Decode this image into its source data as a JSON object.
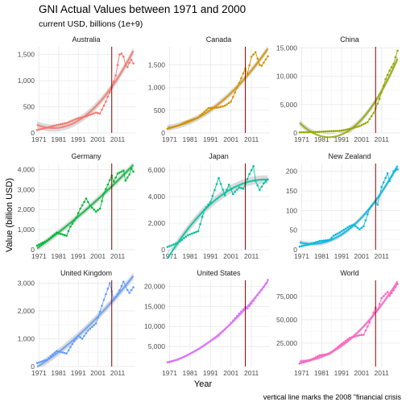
{
  "title": "GNI Actual Values between 1971 and 2000",
  "subtitle": "current USD, billions (1e+9)",
  "xlabel": "Year",
  "ylabel": "Value (billion USD)",
  "caption": "vertical line marks the 2008 \"financial crisis",
  "colors": {
    "Australia": "#F8766D",
    "Canada": "#D39200",
    "China": "#93AA00",
    "Germany": "#00BA38",
    "Japan": "#00C19F",
    "New Zealand": "#00B9E3",
    "United Kingdom": "#619CFF",
    "United States": "#DB72FB",
    "World": "#FF61C3",
    "crisis_line": "#8B0000",
    "panel_grid": "#EBEBEB",
    "smooth_band": "#BDBDBD"
  },
  "chart_data": {
    "type": "line",
    "crisis_year": 2008,
    "x_range": [
      1970,
      2020
    ],
    "x_ticks": [
      1971,
      1981,
      1991,
      2001,
      2011
    ],
    "panels": [
      {
        "name": "Australia",
        "color_key": "Australia",
        "ylim": [
          0,
          1650
        ],
        "y_ticks": [
          0,
          500,
          1000,
          1500
        ],
        "y_tick_labels": [
          "0",
          "500",
          "1,000",
          "1,500"
        ],
        "anchors": [
          [
            1970,
            55
          ],
          [
            1975,
            100
          ],
          [
            1980,
            150
          ],
          [
            1985,
            190
          ],
          [
            1990,
            270
          ],
          [
            1995,
            320
          ],
          [
            2000,
            390
          ],
          [
            2002,
            370
          ],
          [
            2005,
            600
          ],
          [
            2008,
            870
          ],
          [
            2010,
            1100
          ],
          [
            2011,
            1300
          ],
          [
            2012,
            1500
          ],
          [
            2013,
            1520
          ],
          [
            2014,
            1460
          ],
          [
            2015,
            1300
          ],
          [
            2016,
            1260
          ],
          [
            2017,
            1340
          ],
          [
            2018,
            1400
          ],
          [
            2019,
            1330
          ]
        ]
      },
      {
        "name": "Canada",
        "color_key": "Canada",
        "ylim": [
          0,
          1900
        ],
        "y_ticks": [
          0,
          500,
          1000,
          1500
        ],
        "y_tick_labels": [
          "0",
          "500",
          "1,000",
          "1,500"
        ],
        "anchors": [
          [
            1970,
            90
          ],
          [
            1975,
            160
          ],
          [
            1980,
            260
          ],
          [
            1985,
            340
          ],
          [
            1990,
            550
          ],
          [
            1995,
            560
          ],
          [
            1998,
            600
          ],
          [
            2001,
            690
          ],
          [
            2005,
            1100
          ],
          [
            2008,
            1420
          ],
          [
            2009,
            1300
          ],
          [
            2011,
            1680
          ],
          [
            2013,
            1780
          ],
          [
            2015,
            1500
          ],
          [
            2016,
            1480
          ],
          [
            2019,
            1690
          ]
        ]
      },
      {
        "name": "China",
        "color_key": "China",
        "ylim": [
          0,
          15200
        ],
        "y_ticks": [
          0,
          5000,
          10000,
          15000
        ],
        "y_tick_labels": [
          "0",
          "5,000",
          "10,000",
          "15,000"
        ],
        "anchors": [
          [
            1970,
            92
          ],
          [
            1980,
            190
          ],
          [
            1985,
            300
          ],
          [
            1990,
            360
          ],
          [
            1995,
            700
          ],
          [
            2000,
            1200
          ],
          [
            2004,
            1900
          ],
          [
            2007,
            3500
          ],
          [
            2010,
            6000
          ],
          [
            2013,
            9500
          ],
          [
            2015,
            11000
          ],
          [
            2017,
            12200
          ],
          [
            2019,
            14500
          ]
        ]
      },
      {
        "name": "Germany",
        "color_key": "Germany",
        "ylim": [
          0,
          4300
        ],
        "y_ticks": [
          0,
          1000,
          2000,
          3000,
          4000
        ],
        "y_tick_labels": [
          "0",
          "1,000",
          "2,000",
          "3,000",
          "4,000"
        ],
        "anchors": [
          [
            1970,
            210
          ],
          [
            1975,
            450
          ],
          [
            1980,
            850
          ],
          [
            1985,
            700
          ],
          [
            1987,
            1150
          ],
          [
            1990,
            1600
          ],
          [
            1992,
            2050
          ],
          [
            1995,
            2550
          ],
          [
            1997,
            2200
          ],
          [
            2000,
            1900
          ],
          [
            2002,
            2050
          ],
          [
            2004,
            2800
          ],
          [
            2008,
            3700
          ],
          [
            2009,
            3400
          ],
          [
            2011,
            3800
          ],
          [
            2014,
            3950
          ],
          [
            2015,
            3450
          ],
          [
            2017,
            3750
          ],
          [
            2018,
            4050
          ],
          [
            2019,
            3900
          ]
        ]
      },
      {
        "name": "Japan",
        "color_key": "Japan",
        "ylim": [
          0,
          6500
        ],
        "y_ticks": [
          0,
          2000,
          4000,
          6000
        ],
        "y_tick_labels": [
          "0",
          "2,000",
          "4,000",
          "6,000"
        ],
        "anchors": [
          [
            1970,
            210
          ],
          [
            1975,
            520
          ],
          [
            1980,
            1100
          ],
          [
            1985,
            1400
          ],
          [
            1988,
            3000
          ],
          [
            1991,
            3600
          ],
          [
            1995,
            5400
          ],
          [
            1998,
            4100
          ],
          [
            2000,
            4900
          ],
          [
            2002,
            4200
          ],
          [
            2005,
            4700
          ],
          [
            2007,
            4600
          ],
          [
            2010,
            5700
          ],
          [
            2012,
            6300
          ],
          [
            2013,
            5200
          ],
          [
            2015,
            4500
          ],
          [
            2017,
            5000
          ],
          [
            2019,
            5300
          ]
        ]
      },
      {
        "name": "New Zealand",
        "color_key": "New Zealand",
        "ylim": [
          0,
          220
        ],
        "y_ticks": [
          0,
          50,
          100,
          150,
          200
        ],
        "y_tick_labels": [
          "0",
          "50",
          "100",
          "150",
          "200"
        ],
        "anchors": [
          [
            1970,
            8
          ],
          [
            1975,
            14
          ],
          [
            1980,
            22
          ],
          [
            1985,
            25
          ],
          [
            1987,
            36
          ],
          [
            1990,
            44
          ],
          [
            1995,
            60
          ],
          [
            1997,
            64
          ],
          [
            2000,
            52
          ],
          [
            2002,
            60
          ],
          [
            2005,
            105
          ],
          [
            2008,
            125
          ],
          [
            2009,
            115
          ],
          [
            2011,
            160
          ],
          [
            2014,
            195
          ],
          [
            2015,
            175
          ],
          [
            2017,
            200
          ],
          [
            2019,
            205
          ]
        ]
      },
      {
        "name": "United Kingdom",
        "color_key": "United Kingdom",
        "ylim": [
          0,
          3100
        ],
        "y_ticks": [
          0,
          1000,
          2000,
          3000
        ],
        "y_tick_labels": [
          "0",
          "1,000",
          "2,000",
          "3,000"
        ],
        "anchors": [
          [
            1970,
            130
          ],
          [
            1975,
            240
          ],
          [
            1980,
            560
          ],
          [
            1985,
            470
          ],
          [
            1989,
            920
          ],
          [
            1991,
            1100
          ],
          [
            1993,
            1000
          ],
          [
            1996,
            1300
          ],
          [
            2000,
            1550
          ],
          [
            2004,
            2400
          ],
          [
            2007,
            3000
          ],
          [
            2009,
            2400
          ],
          [
            2011,
            2600
          ],
          [
            2014,
            3050
          ],
          [
            2016,
            2750
          ],
          [
            2017,
            2650
          ],
          [
            2019,
            2850
          ]
        ]
      },
      {
        "name": "United States",
        "color_key": "United States",
        "ylim": [
          0,
          21500
        ],
        "y_ticks": [
          5000,
          10000,
          15000,
          20000
        ],
        "y_tick_labels": [
          "5,000",
          "10,000",
          "15,000",
          "20,000"
        ],
        "anchors": [
          [
            1970,
            1100
          ],
          [
            1975,
            1700
          ],
          [
            1980,
            2900
          ],
          [
            1985,
            4300
          ],
          [
            1990,
            6000
          ],
          [
            1995,
            7700
          ],
          [
            2000,
            10300
          ],
          [
            2005,
            13200
          ],
          [
            2008,
            14800
          ],
          [
            2009,
            14500
          ],
          [
            2011,
            15700
          ],
          [
            2014,
            17800
          ],
          [
            2017,
            19800
          ],
          [
            2019,
            21600
          ]
        ]
      },
      {
        "name": "World",
        "color_key": "World",
        "ylim": [
          0,
          92000
        ],
        "y_ticks": [
          25000,
          50000,
          75000
        ],
        "y_tick_labels": [
          "25,000",
          "50,000",
          "75,000"
        ],
        "anchors": [
          [
            1970,
            3200
          ],
          [
            1975,
            6500
          ],
          [
            1980,
            12000
          ],
          [
            1985,
            13500
          ],
          [
            1990,
            22500
          ],
          [
            1995,
            30500
          ],
          [
            2000,
            33500
          ],
          [
            2002,
            34000
          ],
          [
            2005,
            47000
          ],
          [
            2008,
            63000
          ],
          [
            2009,
            60500
          ],
          [
            2011,
            73000
          ],
          [
            2014,
            79500
          ],
          [
            2015,
            75500
          ],
          [
            2017,
            81500
          ],
          [
            2019,
            88000
          ]
        ]
      }
    ]
  }
}
